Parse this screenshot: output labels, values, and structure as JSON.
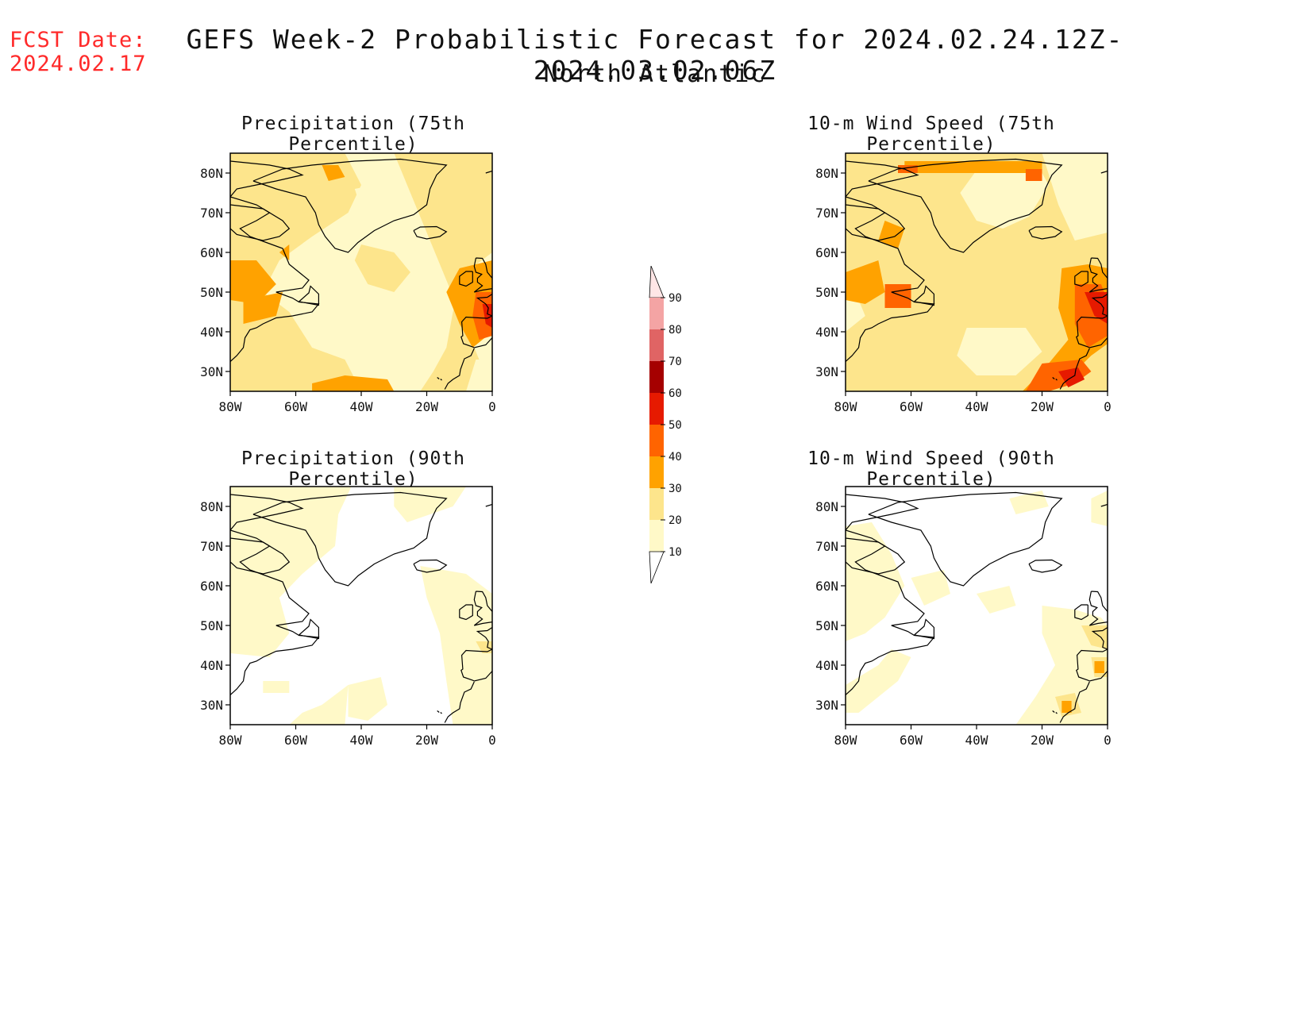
{
  "header": {
    "fcst_label": "FCST Date:",
    "fcst_date": "2024.02.17",
    "title": "GEFS Week-2 Probabilistic Forecast for 2024.02.24.12Z-2024.03.02.06Z",
    "region": "North Atlantic"
  },
  "panels": [
    {
      "title": "Precipitation (75th Percentile)",
      "variable": "precipitation",
      "percentile": 75
    },
    {
      "title": "10-m Wind Speed (75th Percentile)",
      "variable": "wind",
      "percentile": 75
    },
    {
      "title": "Precipitation (90th Percentile)",
      "variable": "precipitation",
      "percentile": 90
    },
    {
      "title": "10-m Wind Speed (90th Percentile)",
      "variable": "wind",
      "percentile": 90
    }
  ],
  "axes": {
    "lat_ticks": [
      "80N",
      "70N",
      "60N",
      "50N",
      "40N",
      "30N"
    ],
    "lon_ticks": [
      "80W",
      "60W",
      "40W",
      "20W",
      "0"
    ],
    "lat_range": [
      25,
      85
    ],
    "lon_range": [
      -80,
      0
    ]
  },
  "legend": {
    "levels": [
      10,
      20,
      30,
      40,
      50,
      60,
      70,
      80,
      90
    ],
    "colors": [
      "#fff9c8",
      "#fde58c",
      "#ffa200",
      "#ff6400",
      "#e61a00",
      "#a50000",
      "#e06464",
      "#f4a4a4",
      "#ffe6e6"
    ],
    "labels": [
      "10",
      "20",
      "30",
      "40",
      "50",
      "60",
      "70",
      "80",
      "90"
    ]
  }
}
